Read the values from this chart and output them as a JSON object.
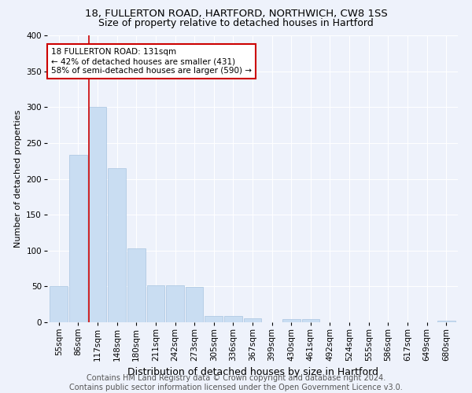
{
  "title1": "18, FULLERTON ROAD, HARTFORD, NORTHWICH, CW8 1SS",
  "title2": "Size of property relative to detached houses in Hartford",
  "xlabel": "Distribution of detached houses by size in Hartford",
  "ylabel": "Number of detached properties",
  "footer": "Contains HM Land Registry data © Crown copyright and database right 2024.\nContains public sector information licensed under the Open Government Licence v3.0.",
  "bin_labels": [
    "55sqm",
    "86sqm",
    "117sqm",
    "148sqm",
    "180sqm",
    "211sqm",
    "242sqm",
    "273sqm",
    "305sqm",
    "336sqm",
    "367sqm",
    "399sqm",
    "430sqm",
    "461sqm",
    "492sqm",
    "524sqm",
    "555sqm",
    "586sqm",
    "617sqm",
    "649sqm",
    "680sqm"
  ],
  "bar_values": [
    50,
    233,
    300,
    215,
    103,
    52,
    52,
    49,
    9,
    9,
    6,
    0,
    4,
    4,
    0,
    0,
    0,
    0,
    0,
    0,
    2
  ],
  "bar_color": "#c9ddf2",
  "bar_edge_color": "#a8c4e0",
  "annotation_text": "18 FULLERTON ROAD: 131sqm\n← 42% of detached houses are smaller (431)\n58% of semi-detached houses are larger (590) →",
  "annotation_box_color": "#ffffff",
  "annotation_box_edge": "#cc0000",
  "vline_color": "#cc0000",
  "ylim": [
    0,
    400
  ],
  "yticks": [
    0,
    50,
    100,
    150,
    200,
    250,
    300,
    350,
    400
  ],
  "background_color": "#eef2fb",
  "grid_color": "#ffffff",
  "title1_fontsize": 9.5,
  "title2_fontsize": 9,
  "xlabel_fontsize": 9,
  "ylabel_fontsize": 8,
  "tick_fontsize": 7.5,
  "footer_fontsize": 7,
  "annot_fontsize": 7.5
}
